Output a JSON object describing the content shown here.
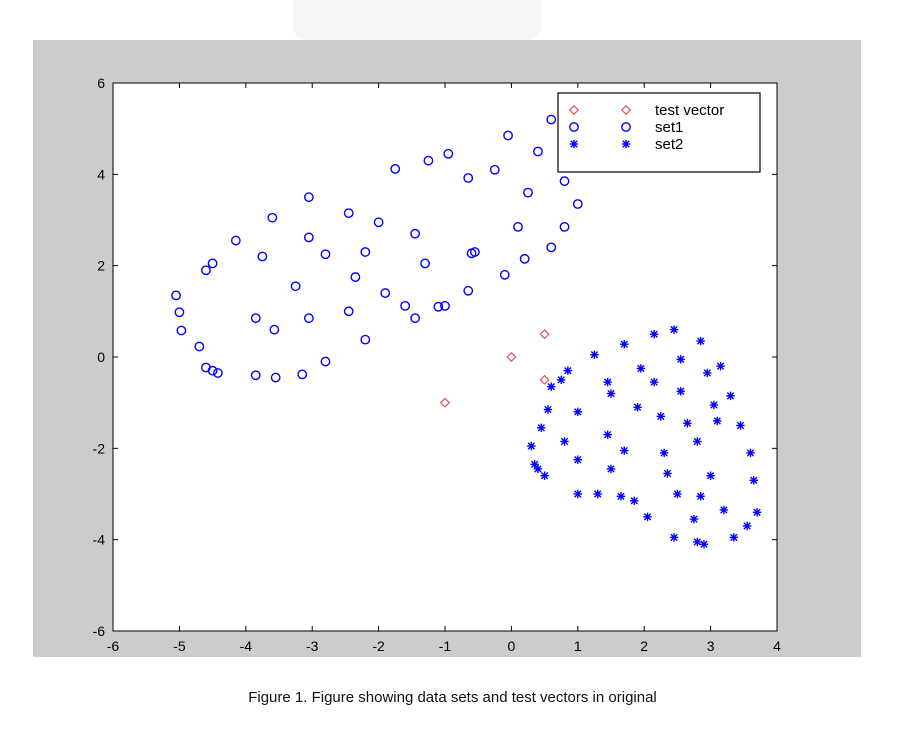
{
  "caption": "Figure 1.  Figure showing data sets and test vectors in original",
  "colors": {
    "figure_bg": "#cccccc",
    "set1": "#0000ff",
    "set2": "#0000ff",
    "test": "#e05050"
  },
  "chart_data": {
    "type": "scatter",
    "title": "",
    "xlabel": "",
    "ylabel": "",
    "xlim": [
      -6,
      4
    ],
    "ylim": [
      -6,
      6
    ],
    "xticks": [
      -6,
      -5,
      -4,
      -3,
      -2,
      -1,
      0,
      1,
      2,
      3,
      4
    ],
    "yticks": [
      -6,
      -4,
      -2,
      0,
      2,
      4,
      6
    ],
    "xtick_labels": [
      "-6",
      "-5",
      "-4",
      "-3",
      "-2",
      "-1",
      "0",
      "1",
      "2",
      "3",
      "4"
    ],
    "ytick_labels": [
      "-6",
      "-4",
      "-2",
      "0",
      "2",
      "4",
      "6"
    ],
    "grid": false,
    "legend": {
      "position": "top-right"
    },
    "series": [
      {
        "name": "test vector",
        "marker": "diamond",
        "color": "#e05050",
        "points": [
          [
            -1.0,
            -1.0
          ],
          [
            0.0,
            0.0
          ],
          [
            0.5,
            0.5
          ],
          [
            0.5,
            -0.5
          ]
        ]
      },
      {
        "name": "set1",
        "marker": "circle",
        "color": "#0000ff",
        "points": [
          [
            -5.05,
            1.35
          ],
          [
            -5.0,
            0.98
          ],
          [
            -4.97,
            0.58
          ],
          [
            -4.7,
            0.23
          ],
          [
            -4.6,
            -0.23
          ],
          [
            -4.5,
            -0.3
          ],
          [
            -4.42,
            -0.35
          ],
          [
            -4.6,
            1.9
          ],
          [
            -4.5,
            2.05
          ],
          [
            -4.15,
            2.55
          ],
          [
            -3.85,
            0.85
          ],
          [
            -3.85,
            -0.4
          ],
          [
            -3.75,
            2.2
          ],
          [
            -3.6,
            3.05
          ],
          [
            -3.57,
            0.6
          ],
          [
            -3.55,
            -0.45
          ],
          [
            -3.25,
            1.55
          ],
          [
            -3.15,
            -0.38
          ],
          [
            -3.05,
            3.5
          ],
          [
            -3.05,
            2.62
          ],
          [
            -3.05,
            0.85
          ],
          [
            -2.8,
            -0.1
          ],
          [
            -2.8,
            2.25
          ],
          [
            -2.45,
            1.0
          ],
          [
            -2.45,
            3.15
          ],
          [
            -2.35,
            1.75
          ],
          [
            -2.2,
            0.38
          ],
          [
            -2.2,
            2.3
          ],
          [
            -2.0,
            2.95
          ],
          [
            -1.9,
            1.4
          ],
          [
            -1.75,
            4.12
          ],
          [
            -1.6,
            1.12
          ],
          [
            -1.45,
            0.85
          ],
          [
            -1.45,
            2.7
          ],
          [
            -1.3,
            2.05
          ],
          [
            -1.25,
            4.3
          ],
          [
            -1.1,
            1.1
          ],
          [
            -1.0,
            1.12
          ],
          [
            -0.95,
            4.45
          ],
          [
            -0.65,
            1.45
          ],
          [
            -0.65,
            3.92
          ],
          [
            -0.6,
            2.27
          ],
          [
            -0.55,
            2.3
          ],
          [
            -0.25,
            4.1
          ],
          [
            -0.1,
            1.8
          ],
          [
            -0.05,
            4.85
          ],
          [
            0.1,
            2.85
          ],
          [
            0.2,
            2.15
          ],
          [
            0.25,
            3.6
          ],
          [
            0.4,
            4.5
          ],
          [
            0.6,
            5.2
          ],
          [
            0.6,
            2.4
          ],
          [
            0.8,
            3.85
          ],
          [
            0.8,
            2.85
          ],
          [
            1.0,
            3.35
          ]
        ]
      },
      {
        "name": "set2",
        "marker": "star",
        "color": "#0000ff",
        "points": [
          [
            0.3,
            -1.95
          ],
          [
            0.35,
            -2.35
          ],
          [
            0.4,
            -2.45
          ],
          [
            0.45,
            -1.55
          ],
          [
            0.5,
            -2.6
          ],
          [
            0.55,
            -1.15
          ],
          [
            0.6,
            -0.65
          ],
          [
            0.75,
            -0.5
          ],
          [
            0.8,
            -1.85
          ],
          [
            0.85,
            -0.3
          ],
          [
            1.0,
            -1.2
          ],
          [
            1.0,
            -2.25
          ],
          [
            1.0,
            -3.0
          ],
          [
            1.25,
            0.05
          ],
          [
            1.3,
            -3.0
          ],
          [
            1.45,
            -0.55
          ],
          [
            1.45,
            -1.7
          ],
          [
            1.5,
            -0.8
          ],
          [
            1.5,
            -2.45
          ],
          [
            1.65,
            -3.05
          ],
          [
            1.7,
            -2.05
          ],
          [
            1.7,
            0.28
          ],
          [
            1.85,
            -3.15
          ],
          [
            1.9,
            -1.1
          ],
          [
            1.95,
            -0.25
          ],
          [
            2.05,
            -3.5
          ],
          [
            2.15,
            0.5
          ],
          [
            2.15,
            -0.55
          ],
          [
            2.25,
            -1.3
          ],
          [
            2.3,
            -2.1
          ],
          [
            2.35,
            -2.55
          ],
          [
            2.45,
            -3.95
          ],
          [
            2.5,
            -3.0
          ],
          [
            2.55,
            -0.05
          ],
          [
            2.55,
            -0.75
          ],
          [
            2.65,
            -1.45
          ],
          [
            2.75,
            -3.55
          ],
          [
            2.8,
            -4.05
          ],
          [
            2.8,
            -1.85
          ],
          [
            2.85,
            -3.05
          ],
          [
            2.85,
            0.35
          ],
          [
            2.9,
            -4.1
          ],
          [
            2.95,
            -0.35
          ],
          [
            3.0,
            -2.6
          ],
          [
            3.05,
            -1.05
          ],
          [
            3.1,
            -1.4
          ],
          [
            3.15,
            -0.2
          ],
          [
            3.2,
            -3.35
          ],
          [
            3.3,
            -0.85
          ],
          [
            3.35,
            -3.95
          ],
          [
            3.45,
            -1.5
          ],
          [
            3.55,
            -3.7
          ],
          [
            3.6,
            -2.1
          ],
          [
            3.65,
            -2.7
          ],
          [
            3.7,
            -3.4
          ],
          [
            2.45,
            0.6
          ]
        ]
      }
    ]
  }
}
